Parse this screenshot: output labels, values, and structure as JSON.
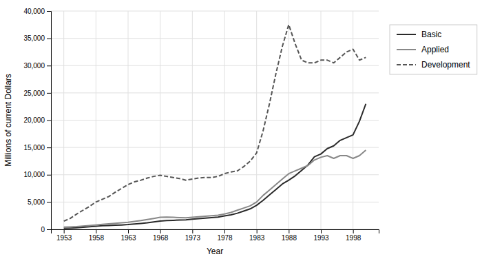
{
  "chart_data": {
    "type": "line",
    "xlabel": "Year",
    "ylabel": "Millions of current Dollars",
    "x": [
      1953,
      1954,
      1955,
      1956,
      1957,
      1958,
      1959,
      1960,
      1961,
      1962,
      1963,
      1964,
      1965,
      1966,
      1967,
      1968,
      1969,
      1970,
      1971,
      1972,
      1973,
      1974,
      1975,
      1976,
      1977,
      1978,
      1979,
      1980,
      1981,
      1982,
      1983,
      1984,
      1985,
      1986,
      1987,
      1988,
      1989,
      1990,
      1991,
      1992,
      1993,
      1994,
      1995,
      1996,
      1997,
      1998,
      1999,
      2000
    ],
    "series": [
      {
        "name": "Basic",
        "color": "#2a2a2a",
        "line_style": "solid",
        "values": [
          200,
          230,
          280,
          370,
          460,
          570,
          650,
          700,
          750,
          800,
          870,
          980,
          1080,
          1200,
          1350,
          1500,
          1600,
          1650,
          1700,
          1750,
          1850,
          1950,
          2050,
          2150,
          2250,
          2450,
          2650,
          2950,
          3350,
          3750,
          4400,
          5300,
          6300,
          7300,
          8300,
          9000,
          9800,
          10800,
          11800,
          13300,
          13800,
          14800,
          15300,
          16300,
          16800,
          17300,
          19800,
          23000
        ]
      },
      {
        "name": "Applied",
        "color": "#888888",
        "line_style": "solid",
        "values": [
          400,
          450,
          500,
          600,
          700,
          800,
          900,
          1000,
          1100,
          1200,
          1300,
          1450,
          1600,
          1800,
          2000,
          2200,
          2250,
          2200,
          2150,
          2100,
          2200,
          2300,
          2400,
          2500,
          2600,
          2800,
          3100,
          3500,
          3900,
          4300,
          5000,
          6200,
          7200,
          8200,
          9200,
          10200,
          10700,
          11200,
          11700,
          12700,
          13200,
          13500,
          13000,
          13500,
          13500,
          13000,
          13500,
          14500
        ]
      },
      {
        "name": "Development",
        "color": "#555555",
        "line_style": "dashed",
        "values": [
          1500,
          2000,
          2800,
          3500,
          4200,
          5000,
          5500,
          6000,
          6800,
          7500,
          8200,
          8700,
          9000,
          9400,
          9700,
          9900,
          9700,
          9500,
          9300,
          9000,
          9200,
          9400,
          9500,
          9500,
          9700,
          10200,
          10500,
          10700,
          11500,
          12500,
          14000,
          18000,
          23000,
          28500,
          33500,
          37500,
          34000,
          31000,
          30500,
          30500,
          31000,
          31000,
          30500,
          31500,
          32500,
          33000,
          31000,
          31500
        ]
      }
    ],
    "xlim": [
      1951,
      2002
    ],
    "xticks": [
      1953,
      1958,
      1963,
      1968,
      1973,
      1978,
      1983,
      1988,
      1993,
      1998
    ],
    "ylim": [
      0,
      40000
    ],
    "yticks": [
      0,
      {
        "value": 5000,
        "label": "5,000"
      },
      {
        "value": 10000,
        "label": "10,000"
      },
      {
        "value": 15000,
        "label": "15,000"
      },
      {
        "value": 20000,
        "label": "20,000"
      },
      {
        "value": 25000,
        "label": "25,000"
      },
      {
        "value": 30000,
        "label": "30,000"
      },
      {
        "value": 35000,
        "label": "35,000"
      },
      {
        "value": 40000,
        "label": "40,000"
      }
    ],
    "grid": true,
    "legend": "right"
  }
}
